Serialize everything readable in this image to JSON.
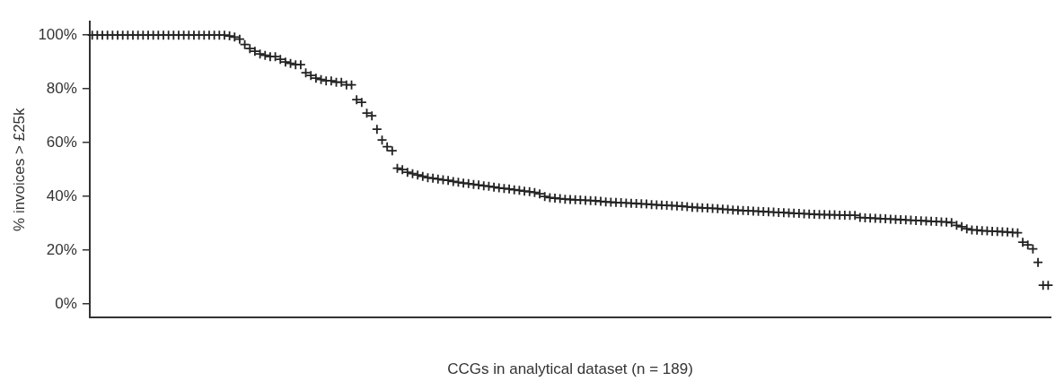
{
  "chart_data": {
    "type": "scatter",
    "xlabel": "CCGs in analytical dataset (n = 189)",
    "ylabel": "% invoices > £25k",
    "marker": "cross",
    "grid": false,
    "legend": false,
    "ylim": [
      -5,
      105
    ],
    "yticks": [
      {
        "value": 0,
        "label": "0%"
      },
      {
        "value": 20,
        "label": "20%"
      },
      {
        "value": 40,
        "label": "40%"
      },
      {
        "value": 60,
        "label": "60%"
      },
      {
        "value": 80,
        "label": "80%"
      },
      {
        "value": 100,
        "label": "100%"
      }
    ],
    "categories": [
      null,
      null,
      null,
      null,
      null,
      null,
      null,
      null,
      null,
      null,
      null,
      null,
      null,
      null,
      null,
      null,
      null,
      null,
      null,
      null,
      null,
      null,
      null,
      null,
      null,
      null,
      null,
      null,
      null,
      null,
      null,
      null,
      null,
      null,
      null,
      null,
      null,
      null,
      null,
      null,
      null,
      null,
      null,
      null,
      null,
      null,
      null,
      null,
      null,
      null,
      null,
      null,
      null,
      null,
      null,
      null,
      null,
      null,
      null,
      null,
      null,
      null,
      null,
      null,
      null,
      null,
      null,
      null,
      null,
      null,
      null,
      null,
      null,
      null,
      null,
      null,
      null,
      null,
      null,
      null,
      null,
      null,
      null,
      null,
      null,
      null,
      null,
      null,
      null,
      null,
      null,
      null,
      null,
      null,
      null,
      null,
      null,
      null,
      null,
      null,
      null,
      null,
      null,
      null,
      null,
      null,
      null,
      null,
      null,
      null,
      null,
      null,
      null,
      null,
      null,
      null,
      null,
      null,
      null,
      null,
      null,
      null,
      null,
      null,
      null,
      null,
      null,
      null,
      null,
      null,
      null,
      null,
      null,
      null,
      null,
      null,
      null,
      null,
      null,
      null,
      null,
      null,
      null,
      null,
      null,
      null,
      null,
      null,
      null,
      null,
      null,
      null,
      null,
      null,
      null,
      null,
      null,
      null,
      null,
      null,
      null,
      null,
      null,
      null,
      null,
      null,
      null,
      null,
      null,
      null,
      null,
      null,
      null,
      null,
      null,
      null,
      null,
      null,
      null,
      null,
      null,
      null,
      null,
      null,
      null,
      null,
      null,
      null,
      null
    ],
    "series": [
      {
        "color": "#222222",
        "values": [
          100,
          100,
          100,
          100,
          100,
          100,
          100,
          100,
          100,
          100,
          100,
          100,
          100,
          100,
          100,
          100,
          100,
          100,
          100,
          100,
          100,
          100,
          100,
          100,
          100,
          100,
          100,
          99.7,
          99.3,
          98.5,
          96.5,
          95,
          94,
          93,
          92.5,
          92,
          92,
          91,
          90,
          89.5,
          89,
          89,
          86,
          85,
          84,
          83.5,
          83,
          83,
          82.5,
          82.5,
          81.5,
          81.5,
          76,
          75,
          71,
          70,
          65,
          61,
          58.5,
          57,
          50.5,
          50,
          49,
          48.5,
          48,
          47.5,
          47,
          46.8,
          46.5,
          46.2,
          46,
          45.6,
          45.3,
          45,
          44.8,
          44.5,
          44.3,
          44,
          43.8,
          43.5,
          43.2,
          43,
          42.8,
          42.5,
          42.3,
          42,
          41.8,
          41.5,
          41,
          40,
          39.6,
          39.4,
          39.2,
          39,
          38.9,
          38.8,
          38.7,
          38.6,
          38.5,
          38.4,
          38.2,
          38,
          37.9,
          37.8,
          37.7,
          37.6,
          37.5,
          37.4,
          37.3,
          37.2,
          37,
          36.9,
          36.8,
          36.7,
          36.6,
          36.5,
          36.4,
          36.2,
          36,
          35.9,
          35.8,
          35.7,
          35.6,
          35.5,
          35.3,
          35.2,
          35,
          34.9,
          34.8,
          34.7,
          34.6,
          34.5,
          34.4,
          34.3,
          34.2,
          34.1,
          34,
          33.9,
          33.8,
          33.7,
          33.6,
          33.5,
          33.4,
          33.3,
          33.3,
          33.2,
          33.2,
          33.1,
          33.1,
          33,
          33,
          32.2,
          32.1,
          32,
          31.9,
          31.8,
          31.7,
          31.6,
          31.5,
          31.4,
          31.3,
          31.2,
          31.1,
          31,
          30.9,
          30.8,
          30.7,
          30.6,
          30.5,
          30.3,
          29.3,
          28.8,
          28,
          27.6,
          27.5,
          27.3,
          27.2,
          27.1,
          27,
          26.9,
          26.8,
          26.6,
          26.5,
          23,
          22,
          20.5,
          15.5,
          7,
          7
        ]
      }
    ]
  }
}
